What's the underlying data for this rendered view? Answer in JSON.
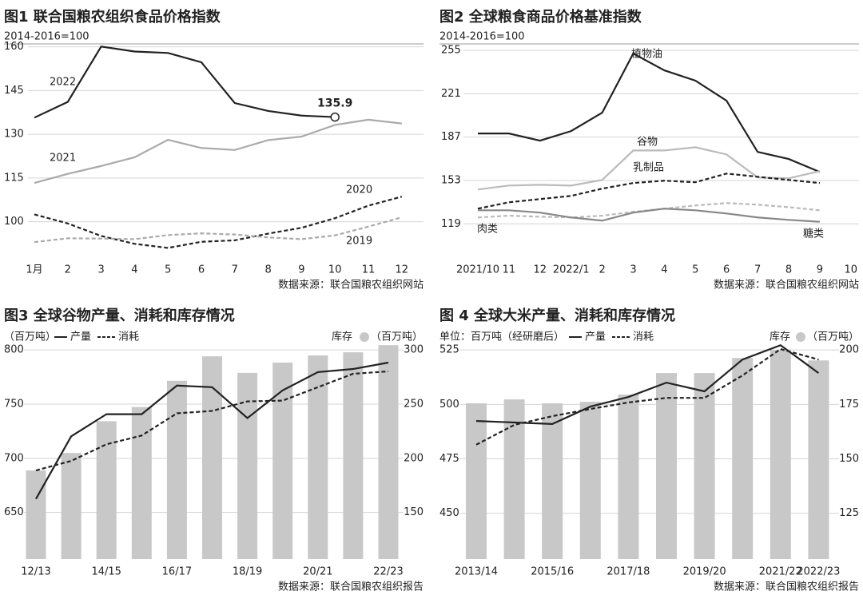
{
  "chart_data": [
    {
      "type": "line",
      "title": "图1 联合国粮农组织食品价格指数",
      "subtitle": "2014-2016=100",
      "source": "数据来源：联合国粮农组织网站",
      "categories": [
        "1月",
        "2",
        "3",
        "4",
        "5",
        "6",
        "7",
        "8",
        "9",
        "10",
        "11",
        "12"
      ],
      "series": [
        {
          "name": "2022",
          "color": "#222222",
          "dashed": false,
          "end_label": true,
          "values": [
            135.7,
            141.1,
            160.1,
            158.4,
            157.9,
            154.7,
            140.7,
            138.0,
            136.4,
            135.9,
            null,
            null
          ]
        },
        {
          "name": "2021",
          "color": "#aaaaaa",
          "dashed": false,
          "values": [
            113.3,
            116.4,
            119.1,
            122.1,
            128.1,
            125.3,
            124.6,
            128.0,
            129.2,
            133.2,
            135.0,
            133.7
          ]
        },
        {
          "name": "2020",
          "color": "#222222",
          "dashed": true,
          "values": [
            102.5,
            99.4,
            95.1,
            92.4,
            91.0,
            93.1,
            93.6,
            95.9,
            97.9,
            101.2,
            105.5,
            108.6
          ]
        },
        {
          "name": "2019",
          "color": "#aaaaaa",
          "dashed": true,
          "values": [
            93.0,
            94.3,
            94.2,
            94.0,
            95.4,
            96.0,
            95.6,
            94.6,
            94.0,
            95.3,
            98.3,
            101.5
          ]
        }
      ],
      "ylim": [
        87,
        161
      ],
      "yticks": [
        100,
        115,
        130,
        145,
        160
      ],
      "grid": true
    },
    {
      "type": "line",
      "title": "图2 全球粮食商品价格基准指数",
      "subtitle": "2014-2016=100",
      "source": "数据来源：联合国粮农组织网站",
      "categories": [
        "2021/10",
        "11",
        "12",
        "2022/1",
        "2",
        "3",
        "4",
        "5",
        "6",
        "7",
        "8",
        "9",
        "10"
      ],
      "series": [
        {
          "name": "植物油",
          "color": "#222222",
          "dashed": false,
          "values": [
            189.8,
            189.8,
            184.2,
            191.7,
            206.1,
            252.5,
            239.3,
            231.2,
            215.5,
            175.4,
            169.8,
            159.7,
            null
          ]
        },
        {
          "name": "谷物",
          "color": "#bbbbbb",
          "dashed": false,
          "values": [
            145.9,
            149.0,
            149.6,
            149.0,
            153.4,
            176.5,
            176.5,
            179.0,
            173.4,
            155.3,
            154.7,
            160.3,
            null
          ]
        },
        {
          "name": "乳制品",
          "color": "#222222",
          "dashed": true,
          "values": [
            130.9,
            135.9,
            138.4,
            140.9,
            146.6,
            151.0,
            152.8,
            151.6,
            158.4,
            155.9,
            153.4,
            151.0,
            null
          ]
        },
        {
          "name": "肉类",
          "color": "#bbbbbb",
          "dashed": true,
          "values": [
            124.0,
            125.4,
            124.6,
            124.0,
            125.4,
            128.4,
            130.9,
            133.4,
            135.3,
            134.0,
            132.1,
            129.6,
            null
          ]
        },
        {
          "name": "糖类",
          "color": "#888888",
          "dashed": false,
          "values": [
            129.6,
            129.6,
            127.8,
            124.0,
            121.5,
            127.8,
            130.9,
            129.6,
            127.1,
            124.0,
            122.1,
            120.6,
            null
          ]
        }
      ],
      "ylim": [
        91,
        260
      ],
      "yticks": [
        119,
        153,
        187,
        221,
        255
      ],
      "grid": true
    },
    {
      "type": "combo",
      "title": "图3 全球谷物产量、消耗和库存情况",
      "y_label": "（百万吨）",
      "y2_label": "（百万吨）",
      "source": "数据来源：联合国粮农组织报告",
      "categories": [
        "12/13",
        null,
        "14/15",
        null,
        "16/17",
        null,
        "18/19",
        null,
        "20/21",
        null,
        "22/23"
      ],
      "series": [
        {
          "name": "产量",
          "color": "#222222",
          "dashed": false,
          "values": [
            662.5,
            720.3,
            740.7,
            740.7,
            767.1,
            765.6,
            737.1,
            762.7,
            779.5,
            782.4,
            788.3
          ]
        },
        {
          "name": "消耗",
          "color": "#222222",
          "dashed": true,
          "values": [
            688.8,
            697.6,
            712.9,
            721.0,
            741.5,
            743.7,
            752.5,
            753.2,
            765.6,
            778.0,
            780.2
          ]
        },
        {
          "name": "库存",
          "color": "#c8c8c8",
          "axis": "y2",
          "values": [
            188.8,
            204.9,
            234.2,
            247.3,
            271.5,
            294.1,
            278.8,
            288.3,
            294.9,
            297.8,
            304.4
          ]
        }
      ],
      "ylim": [
        607,
        806
      ],
      "yticks": [
        650,
        700,
        750,
        800
      ],
      "y2lim": [
        107,
        306
      ],
      "y2ticks": [
        150,
        200,
        250,
        300
      ],
      "grid": true
    },
    {
      "type": "combo",
      "title": "图 4 全球大米产量、消耗和库存情况",
      "y_label": "单位：百万吨（经研磨后）",
      "y2_label": "（百万吨）",
      "source": "数据来源：联合国粮农组织报告",
      "categories": [
        "2013/14",
        null,
        "2015/16",
        null,
        "2017/18",
        null,
        "2019/20",
        null,
        "2021/22",
        "2022/23"
      ],
      "series": [
        {
          "name": "产量",
          "color": "#222222",
          "dashed": false,
          "values": [
            492.4,
            491.7,
            491.0,
            499.0,
            503.4,
            510.0,
            506.0,
            520.6,
            527.2,
            514.4
          ]
        },
        {
          "name": "消耗",
          "color": "#222222",
          "dashed": true,
          "values": [
            481.5,
            490.6,
            494.6,
            497.9,
            500.9,
            503.0,
            503.0,
            513.3,
            525.4,
            520.6
          ]
        },
        {
          "name": "库存",
          "color": "#c8c8c8",
          "axis": "y2",
          "values": [
            175.5,
            177.3,
            175.5,
            176.2,
            179.5,
            189.4,
            189.4,
            196.3,
            200.0,
            195.2
          ]
        }
      ],
      "ylim": [
        429,
        528
      ],
      "yticks": [
        450,
        475,
        500,
        525
      ],
      "y2lim": [
        104,
        203
      ],
      "y2ticks": [
        125,
        150,
        175,
        200
      ],
      "grid": true
    }
  ]
}
